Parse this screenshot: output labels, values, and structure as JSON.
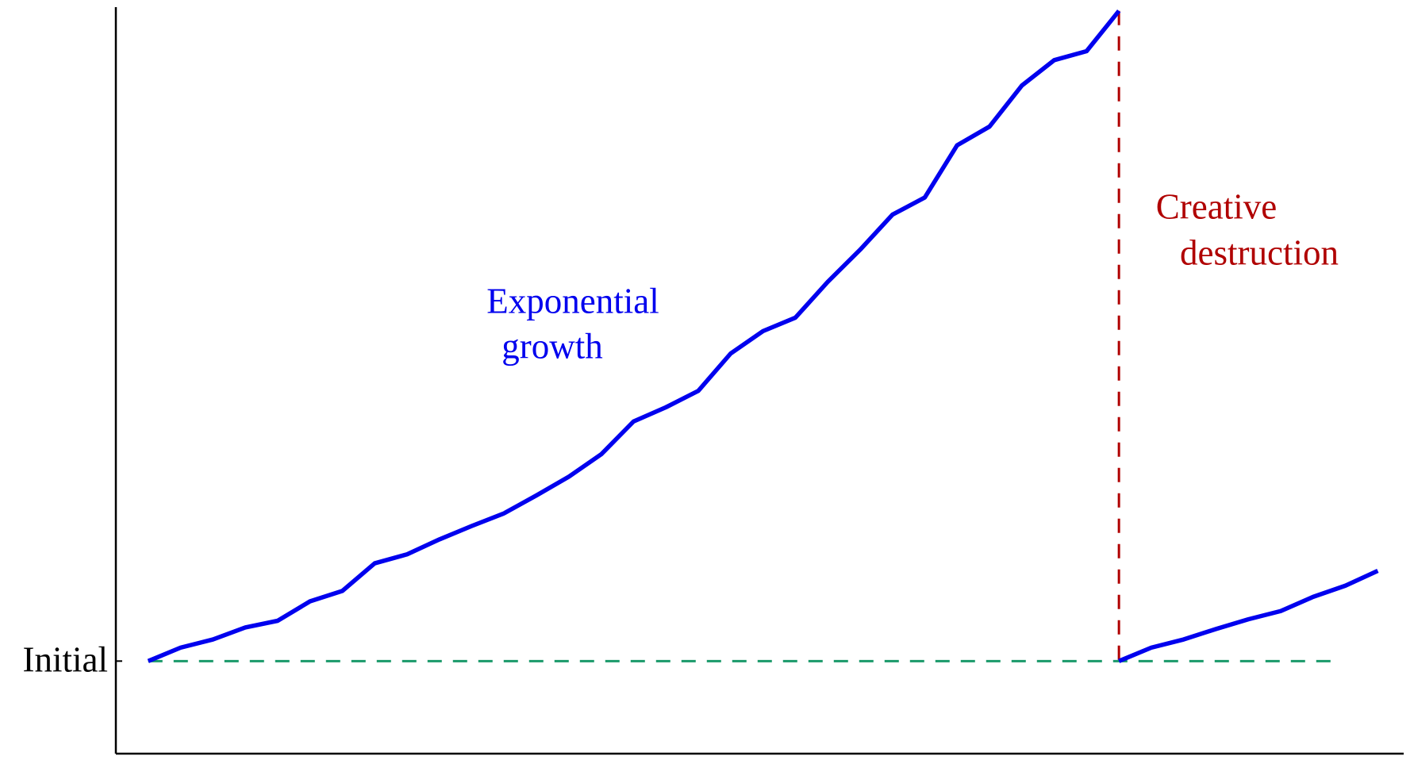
{
  "chart_data": {
    "type": "line",
    "x": [
      0,
      1,
      2,
      3,
      4,
      5,
      6,
      7,
      8,
      9,
      10,
      11,
      12,
      13,
      14,
      15,
      16,
      17,
      18,
      19,
      20,
      21,
      22,
      23,
      24,
      25,
      26,
      27,
      28,
      29,
      30,
      null,
      30,
      31,
      32,
      33,
      34,
      35,
      36,
      37,
      38
    ],
    "values": [
      12.4,
      14.2,
      15.3,
      16.9,
      17.8,
      20.4,
      21.8,
      25.5,
      26.7,
      28.7,
      30.5,
      32.2,
      34.6,
      37.1,
      40.1,
      44.5,
      46.4,
      48.6,
      53.6,
      56.6,
      58.4,
      63.2,
      67.5,
      72.2,
      74.5,
      81.5,
      84.0,
      89.5,
      92.9,
      94.1,
      99.5,
      null,
      12.4,
      14.2,
      15.3,
      16.7,
      18.0,
      19.1,
      21.0,
      22.5,
      24.5
    ],
    "color": "#0000ee",
    "xlim": [
      -1,
      38.8
    ],
    "ylim": [
      0,
      100
    ],
    "yticks": [
      {
        "value": 12.4,
        "label": "Initial"
      }
    ],
    "hline": {
      "y": 12.4,
      "xrange": [
        0,
        36.8
      ],
      "color": "#1a9a6a"
    },
    "vline": {
      "x": 30,
      "yrange": [
        12.4,
        99.5
      ],
      "color": "#b00000"
    },
    "annotations": [
      {
        "lines": [
          "Exponential",
          "growth"
        ],
        "color": "#0000ee"
      },
      {
        "lines": [
          "Creative",
          "destruction"
        ],
        "color": "#b00000"
      }
    ]
  }
}
